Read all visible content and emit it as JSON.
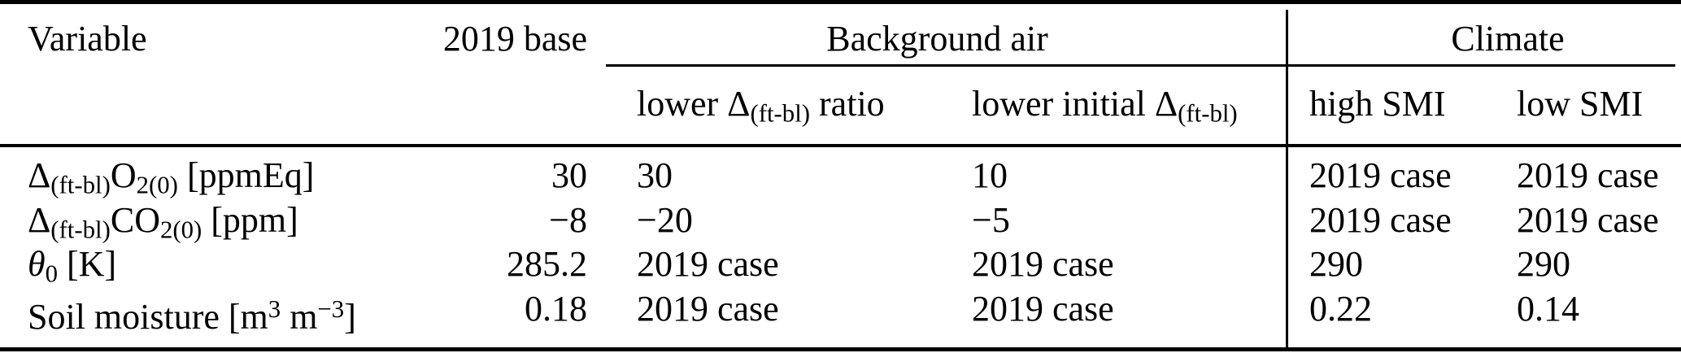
{
  "meta": {
    "background_color": "#ffffff",
    "text_color": "#000000",
    "rule_color": "#000000"
  },
  "table": {
    "groups": {
      "background_air": "Background air",
      "climate": "Climate"
    },
    "columns": {
      "variable": "Variable",
      "base2019": "2019 base",
      "lower_ratio": [
        [
          "n",
          "lower Δ"
        ],
        [
          "s",
          "(ft-bl)"
        ],
        [
          "n",
          " ratio"
        ]
      ],
      "lower_initial": [
        [
          "n",
          "lower initial Δ"
        ],
        [
          "s",
          "(ft-bl)"
        ]
      ],
      "high_smi": "high SMI",
      "low_smi": "low SMI"
    },
    "rows": [
      {
        "variable": [
          [
            "n",
            "Δ"
          ],
          [
            "s",
            "(ft-bl)"
          ],
          [
            "n",
            "O"
          ],
          [
            "s",
            "2(0)"
          ],
          [
            "n",
            " [ppmEq]"
          ]
        ],
        "base": "30",
        "lower_ratio": "30",
        "lower_initial": "10",
        "high_smi": "2019 case",
        "low_smi": "2019 case"
      },
      {
        "variable": [
          [
            "n",
            "Δ"
          ],
          [
            "s",
            "(ft-bl)"
          ],
          [
            "n",
            "CO"
          ],
          [
            "s",
            "2(0)"
          ],
          [
            "n",
            " [ppm]"
          ]
        ],
        "base": "−8",
        "lower_ratio": "−20",
        "lower_initial": "−5",
        "high_smi": "2019 case",
        "low_smi": "2019 case"
      },
      {
        "variable": [
          [
            "i",
            "θ"
          ],
          [
            "s",
            "0"
          ],
          [
            "n",
            " [K]"
          ]
        ],
        "base": "285.2",
        "lower_ratio": "2019 case",
        "lower_initial": "2019 case",
        "high_smi": "290",
        "low_smi": "290"
      },
      {
        "variable": [
          [
            "n",
            "Soil moisture [m"
          ],
          [
            "u",
            "3"
          ],
          [
            "n",
            " m"
          ],
          [
            "u",
            "−3"
          ],
          [
            "n",
            "]"
          ]
        ],
        "base": "0.18",
        "lower_ratio": "2019 case",
        "lower_initial": "2019 case",
        "high_smi": "0.22",
        "low_smi": "0.14"
      }
    ]
  }
}
